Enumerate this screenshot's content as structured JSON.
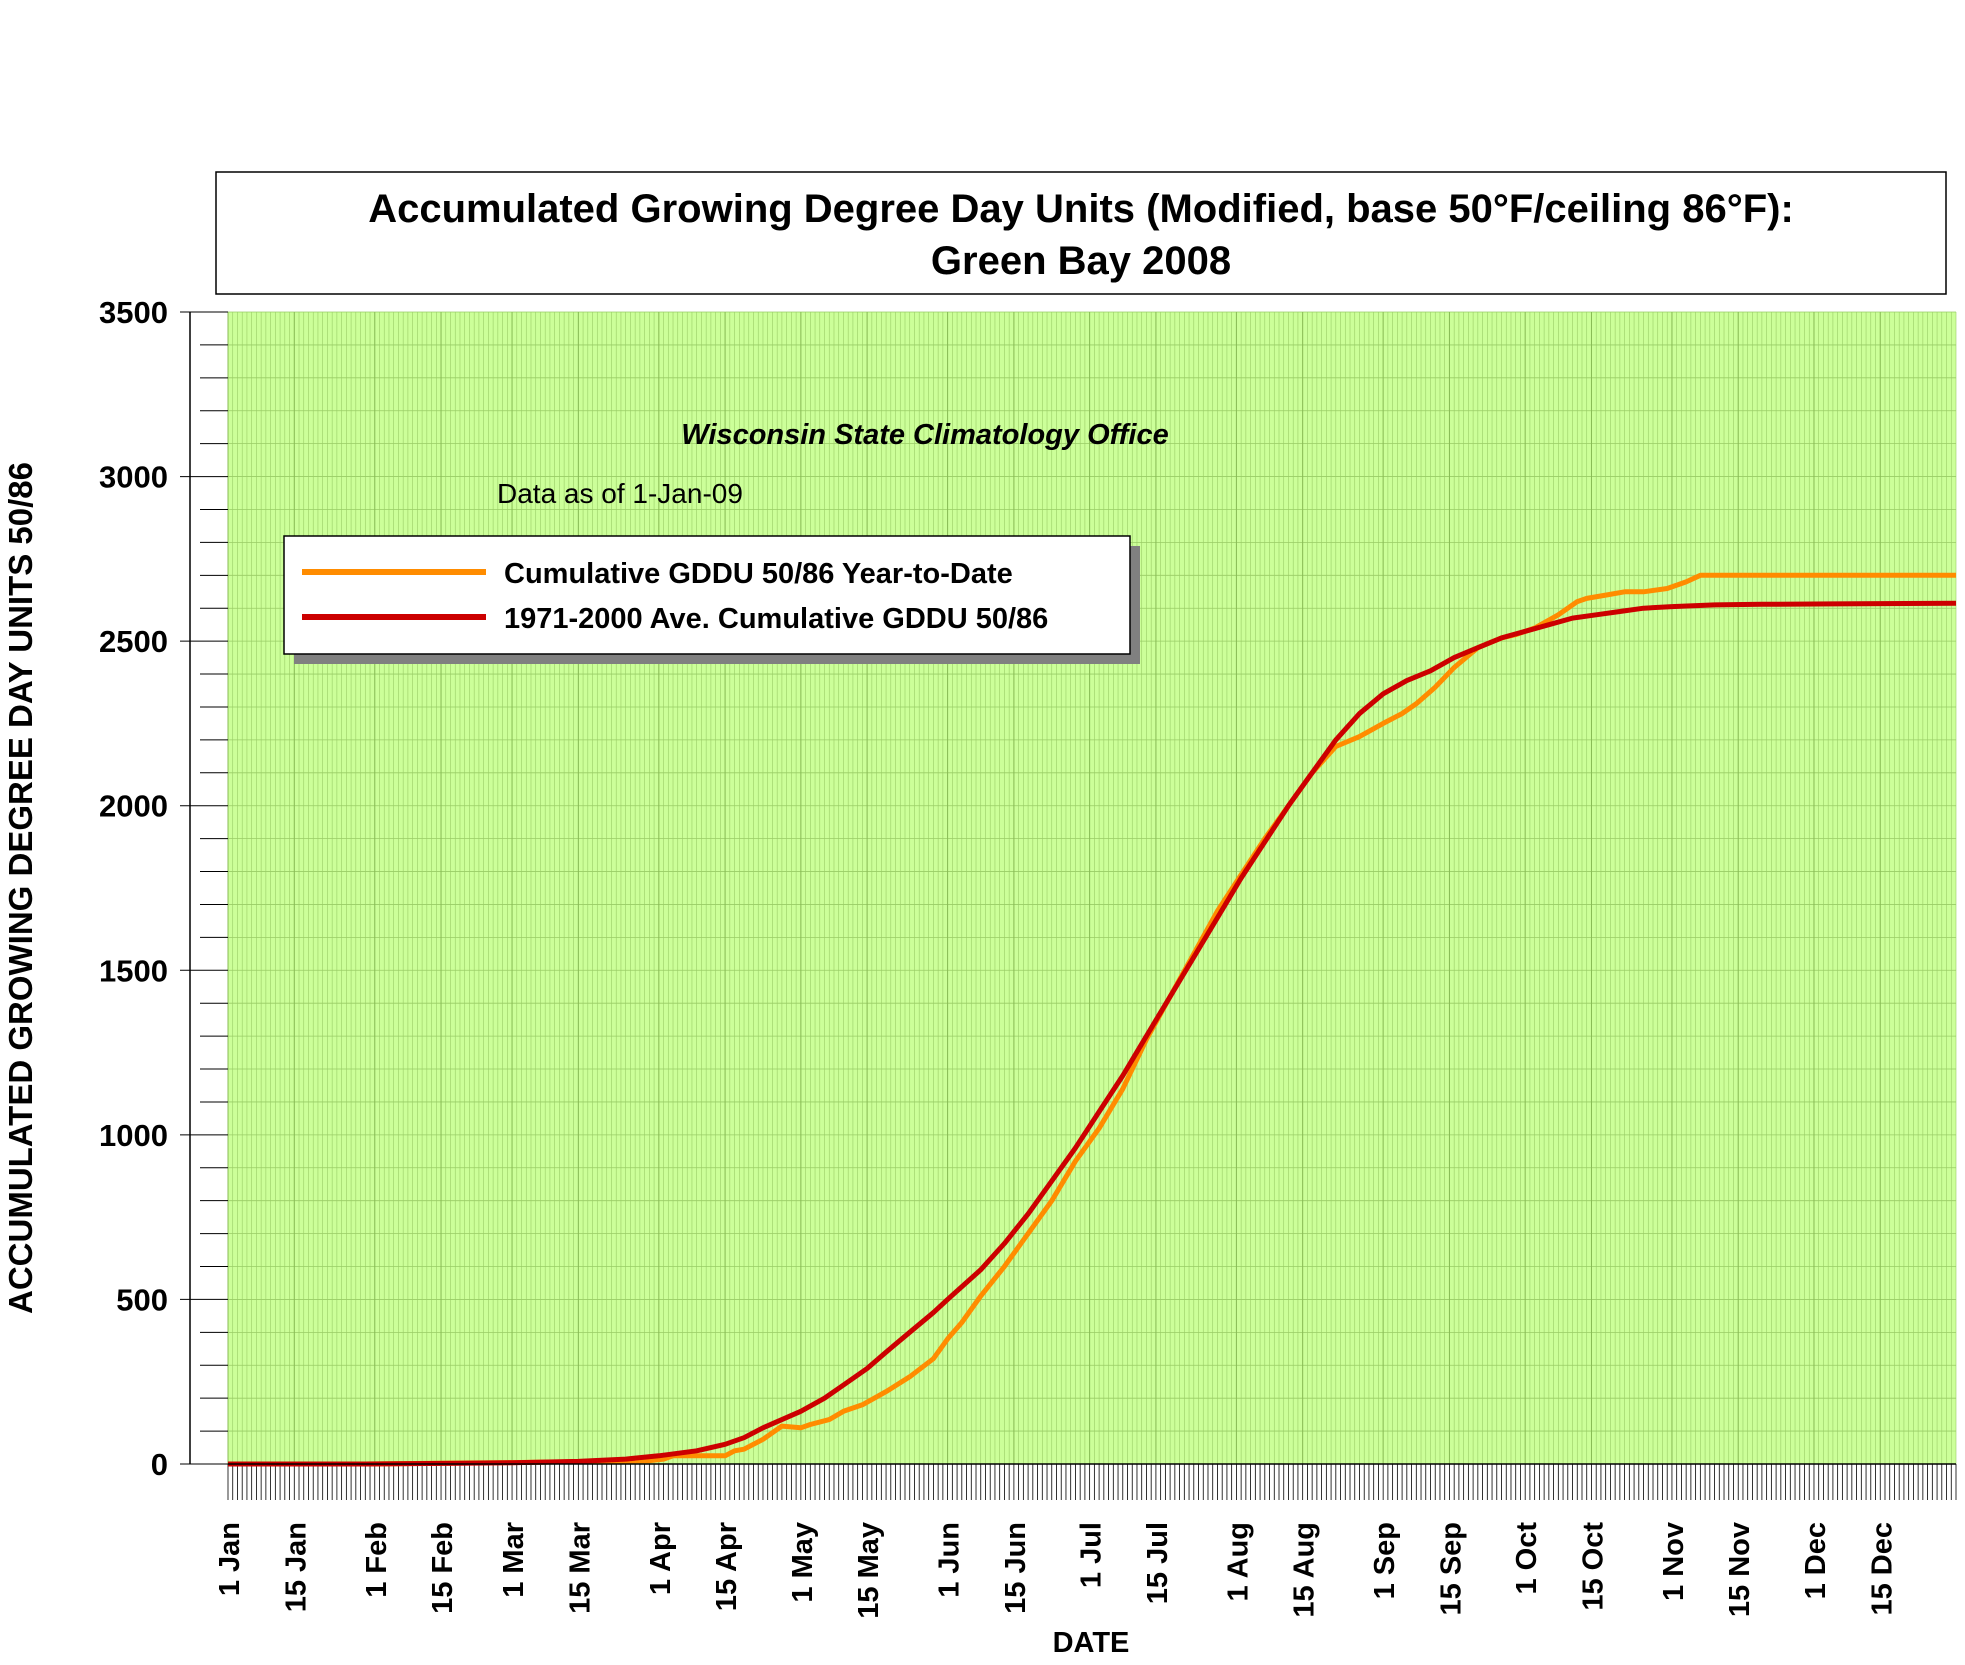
{
  "colors": {
    "plot_bg": "#ccff99",
    "grid_minor": "#99cc66",
    "grid_major": "#bbbbbb",
    "series_ytd": "#ff8c00",
    "series_avg": "#cc0000"
  },
  "chart_data": {
    "type": "line",
    "title": "Accumulated Growing Degree Day Units (Modified, base 50°F/ceiling 86°F):",
    "subtitle": "Green Bay 2008",
    "source": "Wisconsin State Climatology Office",
    "asof": "Data as of 1-Jan-09",
    "xlabel": "DATE",
    "ylabel": "ACCUMULATED GROWING DEGREE DAY UNITS 50/86",
    "xlim": [
      1,
      366
    ],
    "ylim": [
      0,
      3500
    ],
    "ytick_step": 500,
    "yticks": [
      "0",
      "500",
      "1000",
      "1500",
      "2000",
      "2500",
      "3000",
      "3500"
    ],
    "xticks": [
      {
        "label": "1 Jan",
        "day": 1
      },
      {
        "label": "15 Jan",
        "day": 15
      },
      {
        "label": "1 Feb",
        "day": 32
      },
      {
        "label": "15 Feb",
        "day": 46
      },
      {
        "label": "1 Mar",
        "day": 61
      },
      {
        "label": "15 Mar",
        "day": 75
      },
      {
        "label": "1 Apr",
        "day": 92
      },
      {
        "label": "15 Apr",
        "day": 106
      },
      {
        "label": "1 May",
        "day": 122
      },
      {
        "label": "15 May",
        "day": 136
      },
      {
        "label": "1 Jun",
        "day": 153
      },
      {
        "label": "15 Jun",
        "day": 167
      },
      {
        "label": "1 Jul",
        "day": 183
      },
      {
        "label": "15 Jul",
        "day": 197
      },
      {
        "label": "1 Aug",
        "day": 214
      },
      {
        "label": "15 Aug",
        "day": 228
      },
      {
        "label": "1 Sep",
        "day": 245
      },
      {
        "label": "15 Sep",
        "day": 259
      },
      {
        "label": "1 Oct",
        "day": 275
      },
      {
        "label": "15 Oct",
        "day": 289
      },
      {
        "label": "1 Nov",
        "day": 306
      },
      {
        "label": "15 Nov",
        "day": 320
      },
      {
        "label": "1 Dec",
        "day": 336
      },
      {
        "label": "15 Dec",
        "day": 350
      }
    ],
    "legend_position": "top-left",
    "series": [
      {
        "name": "Cumulative GDDU 50/86 Year-to-Date",
        "x": [
          1,
          30,
          50,
          65,
          80,
          90,
          93,
          95,
          100,
          106,
          108,
          110,
          114,
          118,
          122,
          124,
          128,
          131,
          135,
          140,
          145,
          150,
          153,
          156,
          160,
          165,
          170,
          175,
          180,
          185,
          190,
          195,
          200,
          205,
          210,
          215,
          220,
          225,
          230,
          235,
          240,
          245,
          249,
          252,
          256,
          260,
          265,
          270,
          273,
          277,
          282,
          286,
          288,
          292,
          296,
          300,
          305,
          309,
          312,
          320,
          330,
          350,
          366
        ],
        "values": [
          0,
          0,
          3,
          5,
          8,
          10,
          15,
          25,
          25,
          25,
          40,
          45,
          75,
          115,
          110,
          120,
          135,
          160,
          180,
          220,
          265,
          320,
          380,
          430,
          510,
          600,
          700,
          800,
          920,
          1020,
          1140,
          1290,
          1420,
          1550,
          1680,
          1790,
          1900,
          2000,
          2100,
          2180,
          2210,
          2250,
          2280,
          2310,
          2360,
          2420,
          2480,
          2510,
          2520,
          2540,
          2580,
          2620,
          2630,
          2640,
          2650,
          2650,
          2660,
          2680,
          2700,
          2700,
          2700,
          2700,
          2700
        ]
      },
      {
        "name": "1971-2000 Ave. Cumulative GDDU 50/86",
        "x": [
          1,
          30,
          50,
          61,
          75,
          85,
          92,
          100,
          106,
          110,
          114,
          118,
          122,
          127,
          131,
          136,
          140,
          145,
          150,
          153,
          160,
          165,
          170,
          175,
          180,
          185,
          190,
          195,
          200,
          205,
          210,
          215,
          220,
          225,
          230,
          235,
          240,
          245,
          250,
          255,
          260,
          265,
          270,
          275,
          280,
          285,
          290,
          295,
          300,
          306,
          315,
          325,
          340,
          366
        ],
        "values": [
          0,
          0,
          2,
          4,
          8,
          15,
          25,
          40,
          60,
          80,
          110,
          135,
          160,
          200,
          240,
          290,
          340,
          400,
          460,
          500,
          590,
          670,
          760,
          860,
          960,
          1070,
          1180,
          1300,
          1420,
          1540,
          1660,
          1780,
          1890,
          2000,
          2100,
          2200,
          2280,
          2340,
          2380,
          2410,
          2450,
          2480,
          2510,
          2530,
          2550,
          2570,
          2580,
          2590,
          2600,
          2605,
          2610,
          2612,
          2613,
          2615
        ]
      }
    ]
  }
}
